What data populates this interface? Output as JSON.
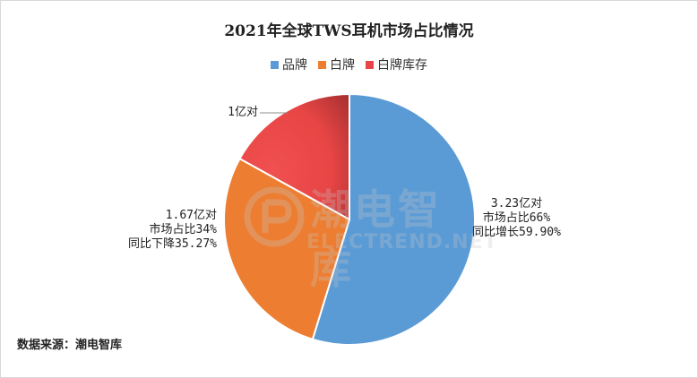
{
  "chart_data": {
    "type": "pie",
    "title": "2021年全球TWS耳机市场占比情况",
    "legend_position": "top",
    "slices": [
      {
        "name": "品牌",
        "value": 3.23,
        "color": "#5B9BD5",
        "labels": [
          "3.23亿对",
          "市场占比66%",
          "同比增长59.90%"
        ]
      },
      {
        "name": "白牌",
        "value": 1.67,
        "color": "#ED7D31",
        "labels": [
          "1.67亿对",
          "市场占比34%",
          "同比下降35.27%"
        ]
      },
      {
        "name": "白牌库存",
        "value": 1,
        "color": "#E84545",
        "labels": [
          "1亿对"
        ]
      }
    ]
  },
  "footer": {
    "source": "数据来源：潮电智库"
  },
  "watermark": {
    "text": "潮电智库",
    "sub": "ELECTREND.NET"
  }
}
